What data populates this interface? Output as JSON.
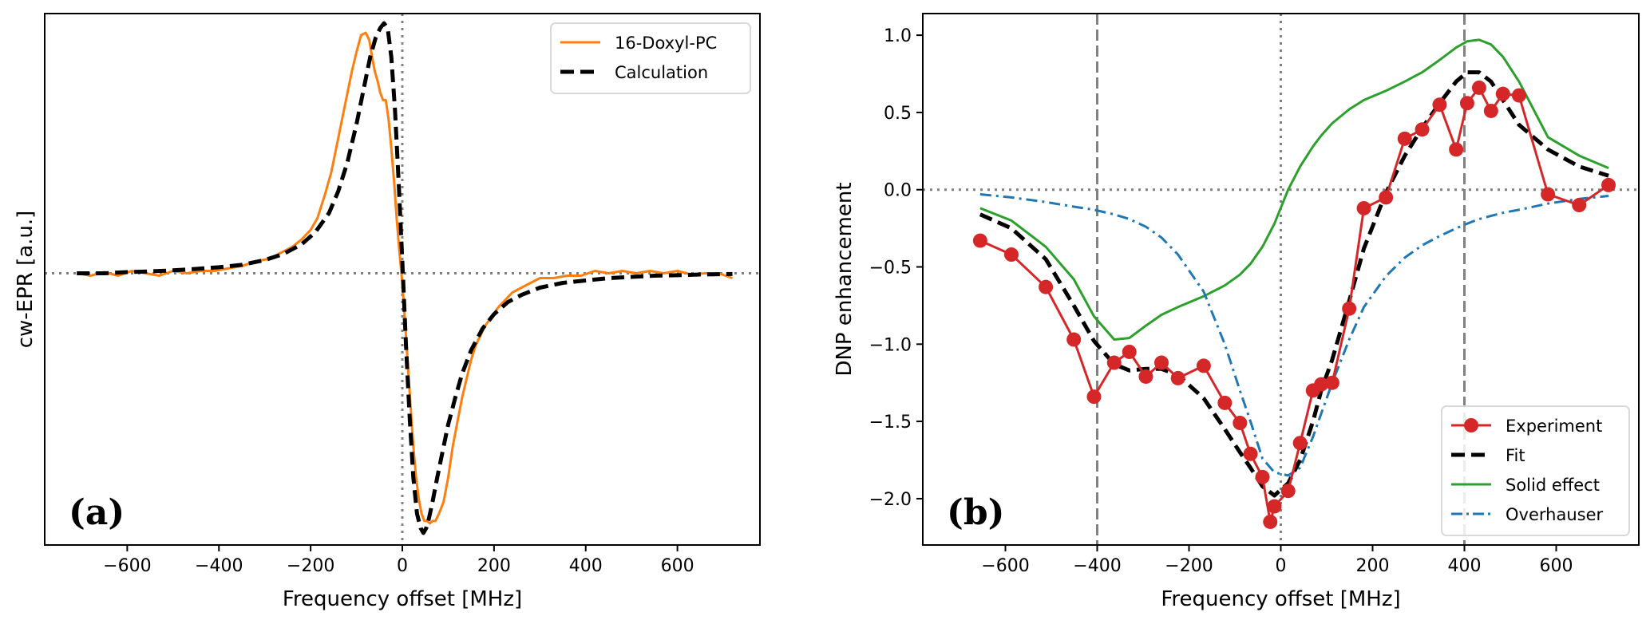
{
  "chart_data": [
    {
      "id": "a",
      "type": "line",
      "panel_label": "(a)",
      "xlabel": "Frequency offset  [MHz]",
      "ylabel": "cw-EPR  [a.u.]",
      "xlim": [
        -780,
        780
      ],
      "ylim": [
        -1.13,
        1.08
      ],
      "xticks": [
        -600,
        -400,
        -200,
        0,
        200,
        400,
        600
      ],
      "xtick_labels": [
        "−600",
        "−400",
        "−200",
        "0",
        "200",
        "400",
        "600"
      ],
      "yticks": [],
      "reference_lines": {
        "horizontal_dotted": [
          0
        ],
        "vertical_dotted": [
          0
        ]
      },
      "legend": {
        "position": "top-right",
        "entries": [
          "16-Doxyl-PC",
          "Calculation"
        ]
      },
      "series": [
        {
          "name": "16-Doxyl-PC",
          "style": "solid",
          "color": "#ff7f0e",
          "x": [
            -710,
            -680,
            -650,
            -620,
            -590,
            -560,
            -530,
            -500,
            -470,
            -440,
            -410,
            -380,
            -350,
            -320,
            -290,
            -260,
            -240,
            -220,
            -200,
            -185,
            -170,
            -155,
            -140,
            -125,
            -110,
            -100,
            -90,
            -80,
            -72,
            -66,
            -60,
            -54,
            -48,
            -42,
            -36,
            -30,
            -24,
            -18,
            -12,
            -6,
            0,
            6,
            12,
            18,
            24,
            30,
            36,
            42,
            48,
            54,
            60,
            66,
            72,
            80,
            90,
            100,
            110,
            120,
            130,
            140,
            150,
            160,
            170,
            180,
            195,
            210,
            225,
            240,
            260,
            280,
            300,
            330,
            360,
            390,
            420,
            450,
            480,
            510,
            540,
            570,
            600,
            630,
            660,
            690,
            720
          ],
          "y": [
            0.0,
            -0.01,
            0.005,
            -0.01,
            0.01,
            0.0,
            -0.01,
            0.01,
            0.0,
            0.01,
            0.01,
            0.02,
            0.03,
            0.05,
            0.06,
            0.09,
            0.11,
            0.14,
            0.18,
            0.23,
            0.32,
            0.42,
            0.56,
            0.7,
            0.84,
            0.92,
            0.99,
            1.0,
            0.97,
            0.9,
            0.84,
            0.8,
            0.75,
            0.72,
            0.72,
            0.64,
            0.52,
            0.38,
            0.22,
            0.08,
            -0.04,
            -0.2,
            -0.38,
            -0.55,
            -0.72,
            -0.85,
            -0.94,
            -1.0,
            -1.03,
            -1.03,
            -1.04,
            -1.03,
            -1.03,
            -1.0,
            -0.95,
            -0.85,
            -0.72,
            -0.62,
            -0.52,
            -0.44,
            -0.36,
            -0.3,
            -0.26,
            -0.22,
            -0.18,
            -0.14,
            -0.11,
            -0.08,
            -0.06,
            -0.04,
            -0.02,
            -0.02,
            -0.01,
            -0.01,
            0.01,
            0.0,
            0.01,
            0.0,
            0.01,
            0.0,
            0.01,
            -0.005,
            0.0,
            0.0,
            -0.02
          ]
        },
        {
          "name": "Calculation",
          "style": "dashed",
          "color": "#000000",
          "x": [
            -710,
            -650,
            -600,
            -550,
            -500,
            -450,
            -400,
            -350,
            -300,
            -260,
            -220,
            -190,
            -160,
            -140,
            -120,
            -100,
            -85,
            -70,
            -58,
            -48,
            -40,
            -32,
            -24,
            -16,
            -8,
            0,
            8,
            16,
            24,
            32,
            40,
            46,
            52,
            58,
            66,
            76,
            88,
            100,
            115,
            130,
            150,
            175,
            200,
            230,
            260,
            300,
            350,
            400,
            450,
            500,
            550,
            600,
            650,
            720
          ],
          "y": [
            0.0,
            0.0,
            0.005,
            0.008,
            0.012,
            0.018,
            0.025,
            0.035,
            0.055,
            0.08,
            0.12,
            0.17,
            0.25,
            0.34,
            0.46,
            0.62,
            0.76,
            0.9,
            0.98,
            1.02,
            1.04,
            1.02,
            0.9,
            0.68,
            0.38,
            0.05,
            -0.3,
            -0.6,
            -0.85,
            -1.0,
            -1.06,
            -1.08,
            -1.06,
            -1.02,
            -0.95,
            -0.85,
            -0.74,
            -0.63,
            -0.52,
            -0.42,
            -0.32,
            -0.23,
            -0.17,
            -0.12,
            -0.09,
            -0.06,
            -0.04,
            -0.03,
            -0.02,
            -0.015,
            -0.01,
            -0.008,
            -0.005,
            -0.003
          ]
        }
      ]
    },
    {
      "id": "b",
      "type": "line",
      "panel_label": "(b)",
      "xlabel": "Frequency offset  [MHz]",
      "ylabel": "DNP enhancement",
      "xlim": [
        -780,
        780
      ],
      "ylim": [
        -2.3,
        1.14
      ],
      "xticks": [
        -600,
        -400,
        -200,
        0,
        200,
        400,
        600
      ],
      "xtick_labels": [
        "−600",
        "−400",
        "−200",
        "0",
        "200",
        "400",
        "600"
      ],
      "yticks": [
        1.0,
        0.5,
        0.0,
        -0.5,
        -1.0,
        -1.5,
        -2.0
      ],
      "ytick_labels": [
        "1.0",
        "0.5",
        "0.0",
        "−0.5",
        "−1.0",
        "−1.5",
        "−2.0"
      ],
      "reference_lines": {
        "horizontal_dotted": [
          0
        ],
        "vertical_dotted": [
          0
        ],
        "vertical_dashed": [
          -400,
          400
        ]
      },
      "legend": {
        "position": "bottom-right",
        "entries": [
          "Experiment",
          "Fit",
          "Solid effect",
          "Overhauser"
        ]
      },
      "series": [
        {
          "name": "Experiment",
          "style": "solid-markers",
          "color": "#d62728",
          "x": [
            -655,
            -587,
            -512,
            -451,
            -407,
            -363,
            -330,
            -294,
            -260,
            -224,
            -168,
            -122,
            -89,
            -66,
            -40,
            -23,
            -14,
            16,
            42,
            70,
            88,
            112,
            149,
            181,
            229,
            270,
            308,
            346,
            382,
            406,
            432,
            458,
            484,
            519,
            582,
            650,
            714
          ],
          "y": [
            -0.33,
            -0.42,
            -0.63,
            -0.97,
            -1.34,
            -1.12,
            -1.05,
            -1.21,
            -1.12,
            -1.22,
            -1.14,
            -1.38,
            -1.51,
            -1.71,
            -1.86,
            -2.15,
            -2.05,
            -1.95,
            -1.64,
            -1.3,
            -1.26,
            -1.25,
            -0.77,
            -0.12,
            -0.05,
            0.33,
            0.39,
            0.55,
            0.26,
            0.56,
            0.66,
            0.51,
            0.62,
            0.61,
            -0.03,
            -0.1,
            0.03
          ]
        },
        {
          "name": "Fit",
          "style": "dashed",
          "color": "#000000",
          "x": [
            -655,
            -587,
            -512,
            -451,
            -407,
            -363,
            -330,
            -294,
            -260,
            -224,
            -168,
            -122,
            -89,
            -66,
            -40,
            -14,
            16,
            42,
            70,
            88,
            112,
            149,
            181,
            229,
            270,
            308,
            346,
            382,
            406,
            432,
            458,
            484,
            519,
            582,
            650,
            714
          ],
          "y": [
            -0.16,
            -0.25,
            -0.45,
            -0.75,
            -0.98,
            -1.13,
            -1.17,
            -1.16,
            -1.16,
            -1.2,
            -1.35,
            -1.55,
            -1.7,
            -1.8,
            -1.92,
            -1.98,
            -1.9,
            -1.75,
            -1.5,
            -1.3,
            -1.1,
            -0.72,
            -0.38,
            -0.02,
            0.22,
            0.4,
            0.56,
            0.7,
            0.76,
            0.76,
            0.7,
            0.58,
            0.42,
            0.26,
            0.15,
            0.09
          ]
        },
        {
          "name": "Solid effect",
          "style": "solid",
          "color": "#2ca02c",
          "x": [
            -655,
            -587,
            -512,
            -451,
            -407,
            -363,
            -330,
            -294,
            -260,
            -224,
            -168,
            -122,
            -89,
            -66,
            -40,
            -14,
            16,
            42,
            70,
            88,
            112,
            149,
            181,
            229,
            270,
            308,
            346,
            382,
            406,
            432,
            458,
            484,
            519,
            582,
            650,
            714
          ],
          "y": [
            -0.12,
            -0.2,
            -0.37,
            -0.58,
            -0.82,
            -0.97,
            -0.96,
            -0.88,
            -0.81,
            -0.76,
            -0.69,
            -0.62,
            -0.55,
            -0.48,
            -0.37,
            -0.22,
            0.0,
            0.15,
            0.28,
            0.35,
            0.43,
            0.52,
            0.58,
            0.64,
            0.7,
            0.76,
            0.84,
            0.92,
            0.96,
            0.97,
            0.94,
            0.86,
            0.7,
            0.34,
            0.22,
            0.14
          ]
        },
        {
          "name": "Overhauser",
          "style": "dashdot",
          "color": "#1f77b4",
          "x": [
            -655,
            -587,
            -512,
            -451,
            -407,
            -363,
            -330,
            -294,
            -260,
            -224,
            -168,
            -122,
            -89,
            -66,
            -40,
            -14,
            16,
            42,
            70,
            88,
            112,
            149,
            181,
            229,
            270,
            308,
            346,
            382,
            406,
            432,
            458,
            484,
            519,
            582,
            650,
            714
          ],
          "y": [
            -0.03,
            -0.05,
            -0.08,
            -0.11,
            -0.13,
            -0.16,
            -0.19,
            -0.24,
            -0.31,
            -0.42,
            -0.66,
            -1.0,
            -1.3,
            -1.5,
            -1.74,
            -1.83,
            -1.85,
            -1.8,
            -1.6,
            -1.45,
            -1.25,
            -0.97,
            -0.76,
            -0.56,
            -0.44,
            -0.36,
            -0.3,
            -0.25,
            -0.22,
            -0.19,
            -0.17,
            -0.15,
            -0.13,
            -0.09,
            -0.06,
            -0.04
          ]
        }
      ]
    }
  ]
}
